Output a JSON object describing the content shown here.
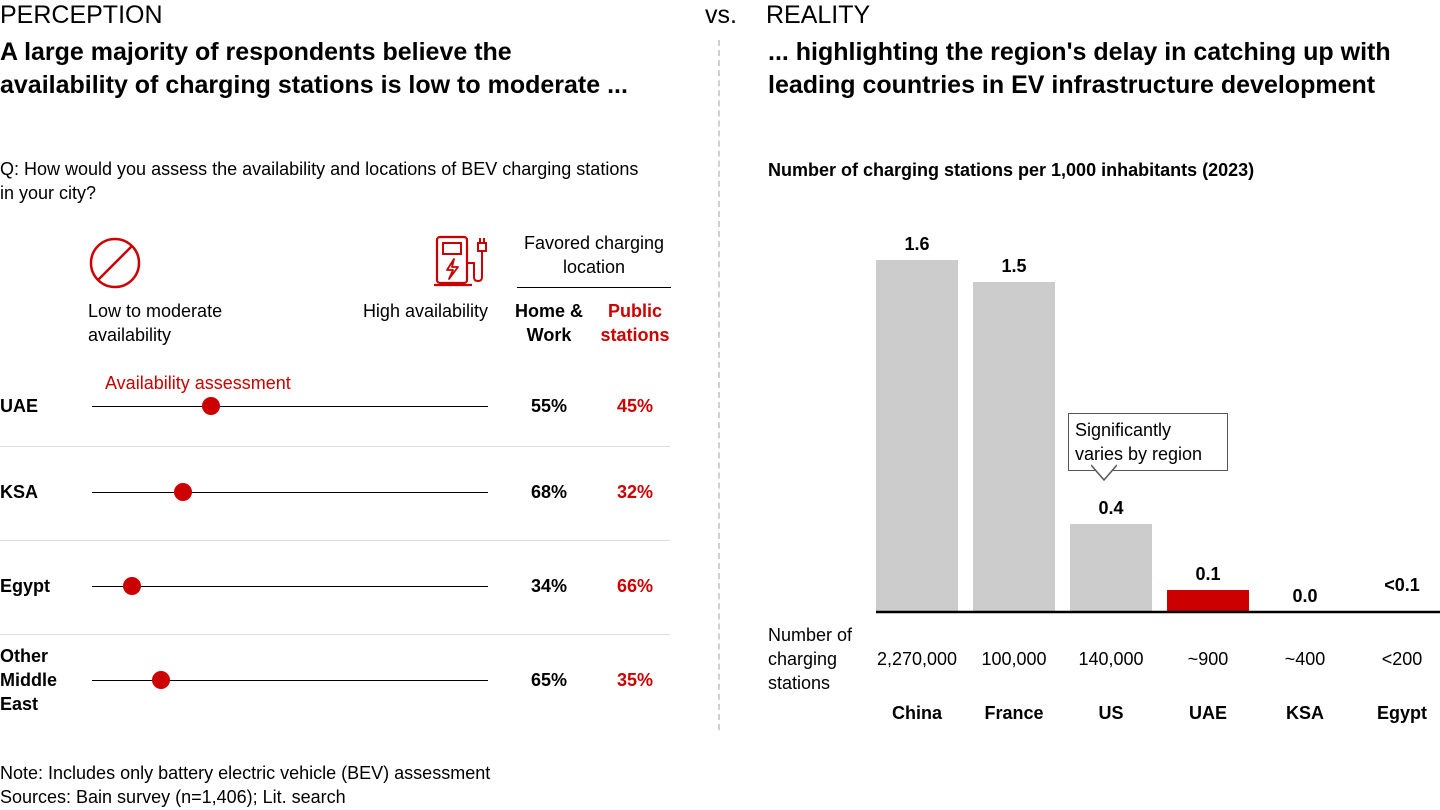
{
  "left": {
    "section_label": "PERCEPTION",
    "headline": "A large majority of respondents believe the availability of charging stations is low to moderate ...",
    "question": "Q: How would you assess the availability and locations of BEV charging stations in your city?",
    "low_label": "Low to moderate availability",
    "high_label": "High availability",
    "favored_header": "Favored charging location",
    "col_home": "Home & Work",
    "col_public": "Public stations",
    "assessment_label": "Availability assessment",
    "icons": {
      "low": "prohibited-icon",
      "high": "ev-charger-icon"
    },
    "rows": [
      {
        "region": "UAE",
        "assessment": 0.3,
        "home": "55%",
        "public": "45%"
      },
      {
        "region": "KSA",
        "assessment": 0.23,
        "home": "68%",
        "public": "32%"
      },
      {
        "region": "Egypt",
        "assessment": 0.1,
        "home": "34%",
        "public": "66%"
      },
      {
        "region": "Other Middle East",
        "assessment": 0.175,
        "home": "65%",
        "public": "35%"
      }
    ]
  },
  "vs_label": "vs.",
  "right": {
    "section_label": "REALITY",
    "headline": "... highlighting the region's delay in catching up with leading countries in EV infrastructure development",
    "stations_label": "Number of charging stations",
    "callout": "Significantly varies by region"
  },
  "chart_data": {
    "type": "bar",
    "title": "Number of charging stations per 1,000 inhabitants (2023)",
    "categories": [
      "China",
      "France",
      "US",
      "UAE",
      "KSA",
      "Egypt"
    ],
    "values": [
      1.6,
      1.5,
      0.4,
      0.1,
      0.0,
      0.05
    ],
    "value_labels": [
      "1.6",
      "1.5",
      "0.4",
      "0.1",
      "0.0",
      "<0.1"
    ],
    "stations": [
      "2,270,000",
      "100,000",
      "140,000",
      "~900",
      "~400",
      "<200"
    ],
    "highlight": "UAE",
    "ylim": [
      0,
      1.6
    ],
    "colors": {
      "bar": "#cccccc",
      "highlight": "#cc0000",
      "accent": "#cc0000"
    }
  },
  "notes": {
    "note": "Note: Includes only battery electric vehicle (BEV) assessment",
    "sources": "Sources: Bain survey (n=1,406); Lit. search"
  }
}
